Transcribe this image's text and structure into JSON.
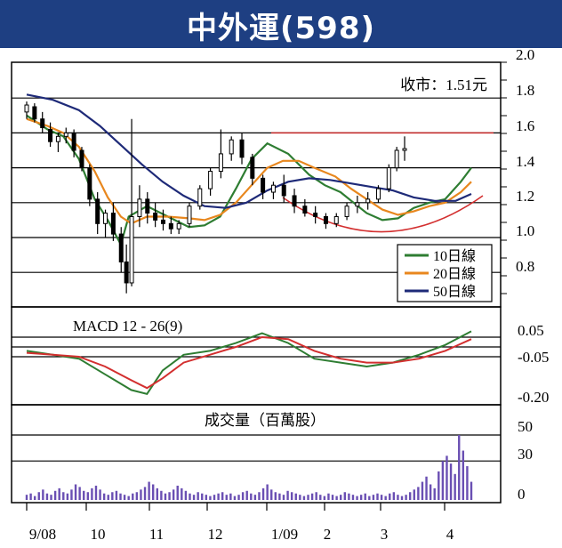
{
  "title": "中外運(598)",
  "chart_data": [
    {
      "type": "line",
      "panel": "price",
      "annotation": "收市：1.51元",
      "y_ticks": [
        "2.0",
        "1.8",
        "1.6",
        "1.4",
        "1.2",
        "1.0",
        "0.8"
      ],
      "ylim": [
        0.65,
        2.0
      ],
      "x_ticks": [
        "9/08",
        "10",
        "11",
        "12",
        "1/09",
        "2",
        "3",
        "4"
      ],
      "legend_position": "bottom-right",
      "series": [
        {
          "name": "10日線",
          "color": "#2e7d32",
          "x": [
            0,
            8,
            14,
            20,
            26,
            31,
            36,
            39,
            46,
            54,
            62,
            68,
            74,
            80,
            86,
            92,
            100,
            108,
            114,
            120,
            125,
            130,
            136,
            142,
            148,
            154,
            160,
            166,
            170
          ],
          "values": [
            1.7,
            1.62,
            1.58,
            1.45,
            1.22,
            1.1,
            0.96,
            1.12,
            1.18,
            1.12,
            1.06,
            1.07,
            1.12,
            1.28,
            1.45,
            1.54,
            1.48,
            1.36,
            1.3,
            1.26,
            1.2,
            1.14,
            1.1,
            1.11,
            1.17,
            1.2,
            1.22,
            1.32,
            1.4
          ]
        },
        {
          "name": "20日線",
          "color": "#e8871e",
          "x": [
            0,
            8,
            14,
            20,
            26,
            31,
            36,
            40,
            46,
            54,
            62,
            68,
            74,
            80,
            86,
            92,
            98,
            104,
            110,
            118,
            124,
            130,
            136,
            142,
            148,
            154,
            160,
            166,
            170
          ],
          "values": [
            1.68,
            1.64,
            1.6,
            1.52,
            1.38,
            1.23,
            1.12,
            1.08,
            1.12,
            1.12,
            1.11,
            1.1,
            1.13,
            1.2,
            1.3,
            1.4,
            1.44,
            1.44,
            1.4,
            1.35,
            1.28,
            1.22,
            1.16,
            1.13,
            1.15,
            1.18,
            1.2,
            1.26,
            1.32
          ]
        },
        {
          "name": "50日線",
          "color": "#1e2a78",
          "x": [
            0,
            10,
            20,
            28,
            36,
            44,
            52,
            60,
            68,
            76,
            84,
            92,
            100,
            108,
            116,
            124,
            132,
            140,
            148,
            156,
            164,
            170
          ],
          "values": [
            1.82,
            1.79,
            1.73,
            1.64,
            1.53,
            1.42,
            1.32,
            1.24,
            1.18,
            1.17,
            1.2,
            1.27,
            1.32,
            1.34,
            1.33,
            1.31,
            1.29,
            1.27,
            1.23,
            1.21,
            1.21,
            1.25
          ]
        }
      ],
      "resistance": 1.6,
      "candles": [
        {
          "x": 0,
          "o": 1.72,
          "h": 1.78,
          "l": 1.68,
          "c": 1.76
        },
        {
          "x": 3,
          "o": 1.75,
          "h": 1.77,
          "l": 1.66,
          "c": 1.68
        },
        {
          "x": 6,
          "o": 1.68,
          "h": 1.72,
          "l": 1.6,
          "c": 1.63
        },
        {
          "x": 9,
          "o": 1.62,
          "h": 1.66,
          "l": 1.52,
          "c": 1.55
        },
        {
          "x": 12,
          "o": 1.55,
          "h": 1.6,
          "l": 1.49,
          "c": 1.58
        },
        {
          "x": 15,
          "o": 1.58,
          "h": 1.63,
          "l": 1.54,
          "c": 1.6
        },
        {
          "x": 18,
          "o": 1.6,
          "h": 1.62,
          "l": 1.46,
          "c": 1.5
        },
        {
          "x": 21,
          "o": 1.5,
          "h": 1.52,
          "l": 1.38,
          "c": 1.4
        },
        {
          "x": 24,
          "o": 1.4,
          "h": 1.42,
          "l": 1.18,
          "c": 1.22
        },
        {
          "x": 27,
          "o": 1.22,
          "h": 1.26,
          "l": 1.02,
          "c": 1.08
        },
        {
          "x": 30,
          "o": 1.08,
          "h": 1.16,
          "l": 1.0,
          "c": 1.14
        },
        {
          "x": 33,
          "o": 1.14,
          "h": 1.2,
          "l": 0.98,
          "c": 1.02
        },
        {
          "x": 36,
          "o": 1.02,
          "h": 1.06,
          "l": 0.8,
          "c": 0.86
        },
        {
          "x": 38,
          "o": 0.86,
          "h": 0.96,
          "l": 0.68,
          "c": 0.74
        },
        {
          "x": 40,
          "o": 0.74,
          "h": 1.68,
          "l": 0.72,
          "c": 1.12
        },
        {
          "x": 43,
          "o": 1.12,
          "h": 1.3,
          "l": 1.06,
          "c": 1.22
        },
        {
          "x": 46,
          "o": 1.22,
          "h": 1.26,
          "l": 1.08,
          "c": 1.14
        },
        {
          "x": 49,
          "o": 1.14,
          "h": 1.2,
          "l": 1.06,
          "c": 1.1
        },
        {
          "x": 52,
          "o": 1.1,
          "h": 1.16,
          "l": 1.04,
          "c": 1.08
        },
        {
          "x": 55,
          "o": 1.08,
          "h": 1.12,
          "l": 1.02,
          "c": 1.05
        },
        {
          "x": 58,
          "o": 1.05,
          "h": 1.1,
          "l": 1.02,
          "c": 1.08
        },
        {
          "x": 62,
          "o": 1.08,
          "h": 1.2,
          "l": 1.06,
          "c": 1.18
        },
        {
          "x": 66,
          "o": 1.18,
          "h": 1.3,
          "l": 1.16,
          "c": 1.28
        },
        {
          "x": 70,
          "o": 1.28,
          "h": 1.4,
          "l": 1.24,
          "c": 1.38
        },
        {
          "x": 74,
          "o": 1.38,
          "h": 1.62,
          "l": 1.34,
          "c": 1.48
        },
        {
          "x": 78,
          "o": 1.48,
          "h": 1.58,
          "l": 1.44,
          "c": 1.56
        },
        {
          "x": 82,
          "o": 1.56,
          "h": 1.6,
          "l": 1.42,
          "c": 1.46
        },
        {
          "x": 86,
          "o": 1.46,
          "h": 1.48,
          "l": 1.3,
          "c": 1.34
        },
        {
          "x": 90,
          "o": 1.34,
          "h": 1.36,
          "l": 1.22,
          "c": 1.26
        },
        {
          "x": 94,
          "o": 1.26,
          "h": 1.32,
          "l": 1.22,
          "c": 1.3
        },
        {
          "x": 98,
          "o": 1.3,
          "h": 1.36,
          "l": 1.2,
          "c": 1.24
        },
        {
          "x": 102,
          "o": 1.24,
          "h": 1.28,
          "l": 1.14,
          "c": 1.18
        },
        {
          "x": 106,
          "o": 1.18,
          "h": 1.22,
          "l": 1.12,
          "c": 1.14
        },
        {
          "x": 110,
          "o": 1.14,
          "h": 1.18,
          "l": 1.08,
          "c": 1.12
        },
        {
          "x": 114,
          "o": 1.12,
          "h": 1.14,
          "l": 1.05,
          "c": 1.08
        },
        {
          "x": 118,
          "o": 1.08,
          "h": 1.14,
          "l": 1.06,
          "c": 1.12
        },
        {
          "x": 122,
          "o": 1.12,
          "h": 1.2,
          "l": 1.1,
          "c": 1.18
        },
        {
          "x": 126,
          "o": 1.18,
          "h": 1.24,
          "l": 1.14,
          "c": 1.2
        },
        {
          "x": 130,
          "o": 1.2,
          "h": 1.26,
          "l": 1.16,
          "c": 1.22
        },
        {
          "x": 134,
          "o": 1.22,
          "h": 1.3,
          "l": 1.2,
          "c": 1.28
        },
        {
          "x": 138,
          "o": 1.28,
          "h": 1.42,
          "l": 1.26,
          "c": 1.4
        },
        {
          "x": 141,
          "o": 1.4,
          "h": 1.52,
          "l": 1.38,
          "c": 1.5
        },
        {
          "x": 144,
          "o": 1.5,
          "h": 1.58,
          "l": 1.44,
          "c": 1.51
        }
      ]
    },
    {
      "type": "line",
      "panel": "macd",
      "title": "MACD 12 - 26(9)",
      "y_ticks": [
        "0.05",
        "-0.05",
        "-0.20"
      ],
      "series": [
        {
          "name": "",
          "color": "#2e7d32",
          "x": [
            0,
            10,
            20,
            30,
            40,
            46,
            52,
            60,
            70,
            80,
            90,
            100,
            110,
            120,
            130,
            140,
            150,
            160,
            170
          ],
          "values": [
            -0.02,
            -0.04,
            -0.06,
            -0.14,
            -0.22,
            -0.24,
            -0.12,
            -0.04,
            -0.02,
            0.02,
            0.07,
            0.02,
            -0.06,
            -0.08,
            -0.1,
            -0.08,
            -0.04,
            0.01,
            0.08
          ]
        },
        {
          "name": "",
          "color": "#d32f2f",
          "x": [
            0,
            10,
            20,
            30,
            40,
            46,
            52,
            60,
            70,
            80,
            90,
            100,
            110,
            120,
            130,
            140,
            150,
            160,
            170
          ],
          "values": [
            -0.03,
            -0.04,
            -0.05,
            -0.1,
            -0.17,
            -0.21,
            -0.16,
            -0.08,
            -0.04,
            0.0,
            0.05,
            0.04,
            -0.02,
            -0.06,
            -0.08,
            -0.08,
            -0.06,
            -0.02,
            0.04
          ]
        }
      ]
    },
    {
      "type": "bar",
      "panel": "volume",
      "title": "成交量（百萬股）",
      "y_ticks": [
        "50",
        "30",
        "0"
      ],
      "values": [
        4,
        5,
        3,
        6,
        8,
        5,
        4,
        7,
        9,
        6,
        5,
        8,
        12,
        10,
        7,
        6,
        9,
        11,
        8,
        5,
        4,
        6,
        7,
        5,
        4,
        3,
        5,
        6,
        8,
        10,
        14,
        12,
        9,
        7,
        5,
        6,
        8,
        11,
        9,
        7,
        5,
        4,
        6,
        5,
        4,
        3,
        4,
        5,
        6,
        4,
        5,
        3,
        4,
        6,
        7,
        5,
        4,
        6,
        9,
        12,
        8,
        6,
        5,
        4,
        7,
        6,
        5,
        4,
        3,
        4,
        5,
        6,
        4,
        3,
        5,
        4,
        3,
        4,
        6,
        5,
        4,
        3,
        4,
        5,
        3,
        4,
        5,
        4,
        3,
        5,
        6,
        4,
        3,
        4,
        6,
        8,
        10,
        14,
        18,
        12,
        9,
        22,
        30,
        34,
        28,
        20,
        50,
        38,
        26,
        14
      ]
    }
  ]
}
